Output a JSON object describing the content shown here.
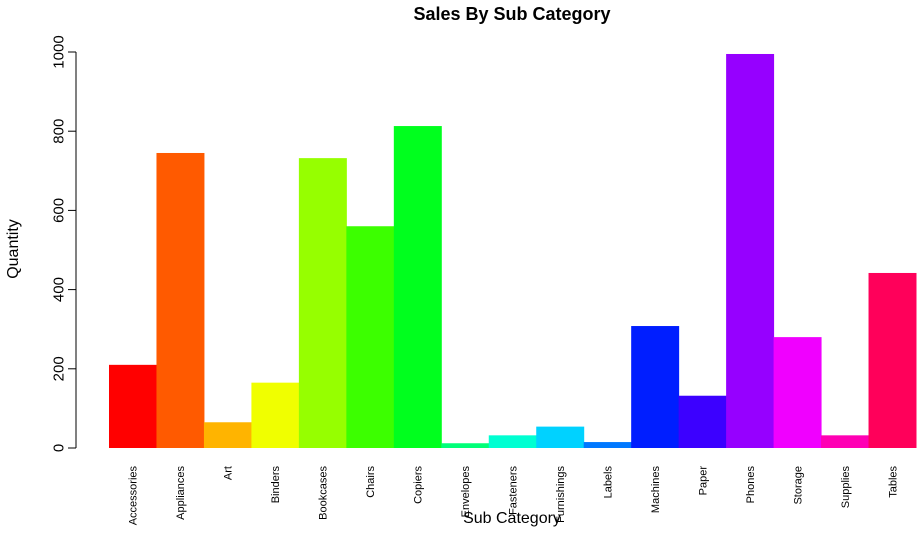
{
  "chart_data": {
    "type": "bar",
    "title": "Sales By Sub Category",
    "xlabel": "Sub Category",
    "ylabel": "Quantity",
    "ylim": [
      0,
      1000
    ],
    "yticks": [
      0,
      200,
      400,
      600,
      800,
      1000
    ],
    "grid": false,
    "legend": "none",
    "categories": [
      "Accessories",
      "Appliances",
      "Art",
      "Binders",
      "Bookcases",
      "Chairs",
      "Copiers",
      "Envelopes",
      "Fasteners",
      "Furnishings",
      "Labels",
      "Machines",
      "Paper",
      "Phones",
      "Storage",
      "Supplies",
      "Tables"
    ],
    "values": [
      210,
      745,
      65,
      165,
      732,
      560,
      813,
      12,
      32,
      54,
      15,
      308,
      132,
      995,
      280,
      32,
      442
    ],
    "colors": [
      "#ff0000",
      "#ff5a00",
      "#ffb400",
      "#f0ff00",
      "#96ff00",
      "#3cff00",
      "#00ff1e",
      "#00ff78",
      "#00ffd2",
      "#00d2ff",
      "#0078ff",
      "#001eff",
      "#3c00ff",
      "#9600ff",
      "#f000ff",
      "#ff00b4",
      "#ff005a"
    ]
  }
}
